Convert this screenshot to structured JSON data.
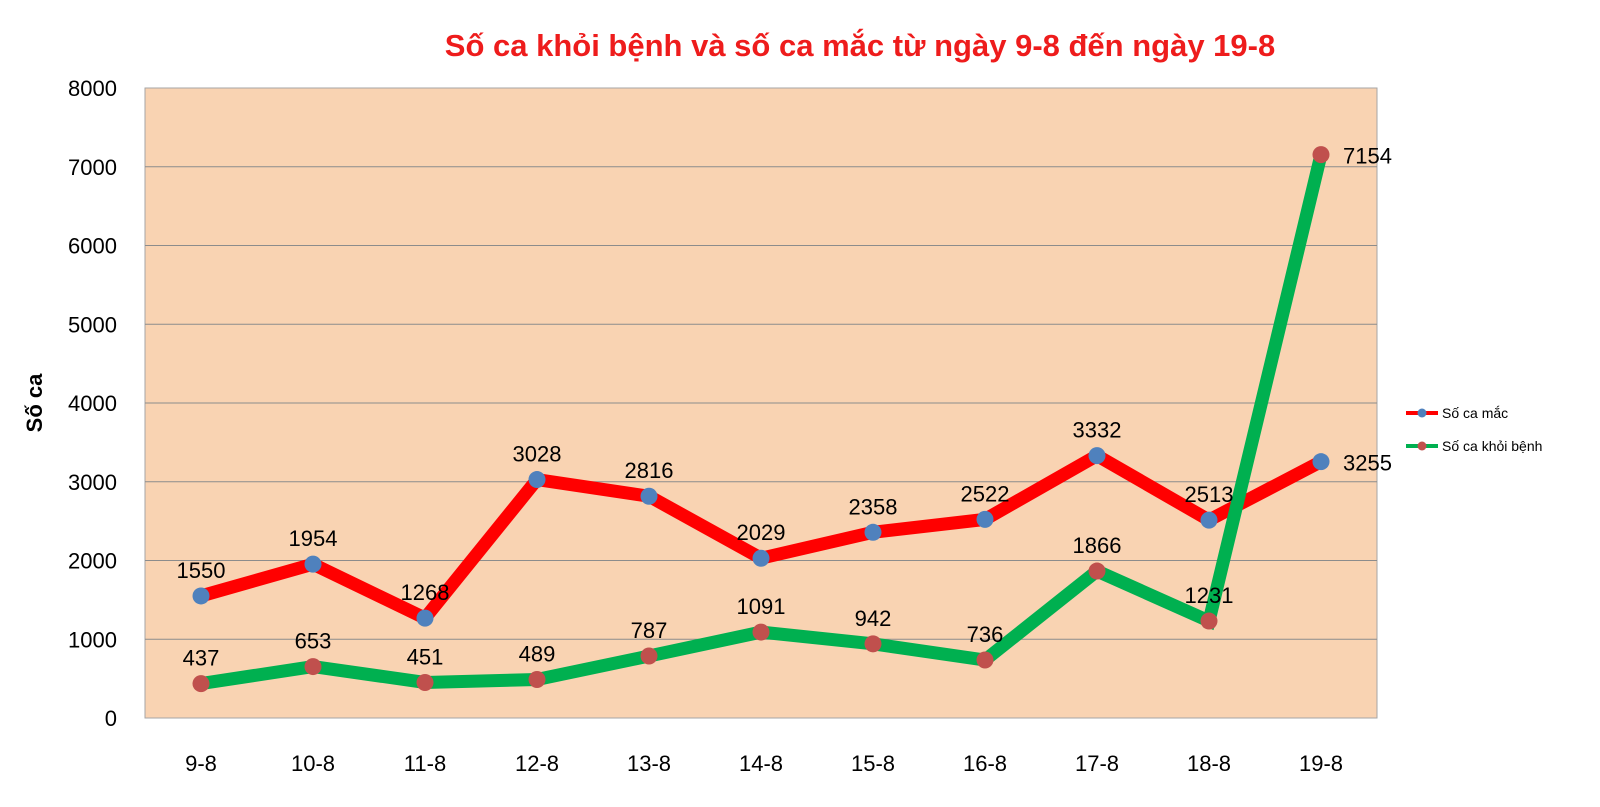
{
  "chart_data": {
    "type": "line",
    "title": "Số ca khỏi bệnh và số ca mắc từ ngày 9-8 đến ngày 19-8",
    "xlabel": "",
    "ylabel": "Số ca",
    "ylim": [
      0,
      8000
    ],
    "yticks": [
      "0",
      "1000",
      "2000",
      "3000",
      "4000",
      "5000",
      "6000",
      "7000",
      "8000"
    ],
    "categories": [
      "9-8",
      "10-8",
      "11-8",
      "12-8",
      "13-8",
      "14-8",
      "15-8",
      "16-8",
      "17-8",
      "18-8",
      "19-8"
    ],
    "grid": true,
    "legend_position": "right",
    "plot_background": "#f9d3b2",
    "series": [
      {
        "name": "Số ca mắc",
        "values": [
          1550,
          1954,
          1268,
          3028,
          2816,
          2029,
          2358,
          2522,
          3332,
          2513,
          3255
        ],
        "labels": [
          "1550",
          "1954",
          "1268",
          "3028",
          "2816",
          "2029",
          "2358",
          "2522",
          "3332",
          "2513",
          "3255"
        ],
        "line_color": "#ff0000",
        "marker_color": "#4f81bd"
      },
      {
        "name": "Số ca khỏi bệnh",
        "values": [
          437,
          653,
          451,
          489,
          787,
          1091,
          942,
          736,
          1866,
          1231,
          7154
        ],
        "labels": [
          "437",
          "653",
          "451",
          "489",
          "787",
          "1091",
          "942",
          "736",
          "1866",
          "1231",
          "7154"
        ],
        "line_color": "#00b050",
        "marker_color": "#c0504d"
      }
    ]
  }
}
